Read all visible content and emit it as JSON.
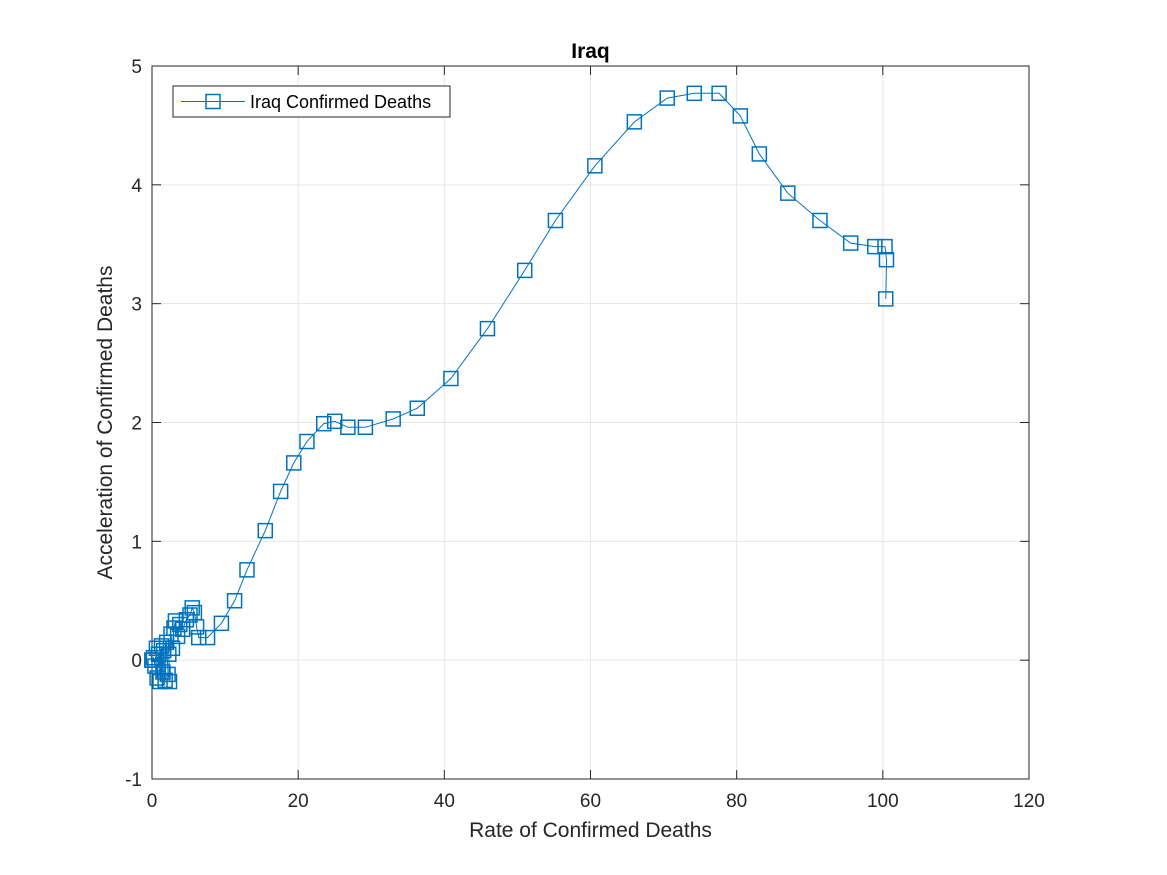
{
  "chart_data": {
    "type": "line",
    "title": "Iraq",
    "xlabel": "Rate of Confirmed Deaths",
    "ylabel": "Acceleration of Confirmed Deaths",
    "xlim": [
      0,
      120
    ],
    "ylim": [
      -1,
      5
    ],
    "xticks": [
      "0",
      "20",
      "40",
      "60",
      "80",
      "100",
      "120"
    ],
    "yticks": [
      "-1",
      "0",
      "1",
      "2",
      "3",
      "4",
      "5"
    ],
    "grid": true,
    "legend": {
      "position": "top-left",
      "entries": [
        "Iraq Confirmed Deaths"
      ]
    },
    "marker": "square",
    "series": [
      {
        "name": "Iraq Confirmed Deaths",
        "color": "#0072BD",
        "points": [
          [
            0,
            0
          ],
          [
            0,
            0
          ],
          [
            0,
            0
          ],
          [
            0.2,
            0.02
          ],
          [
            0.4,
            -0.05
          ],
          [
            0.6,
            0.1
          ],
          [
            0.7,
            -0.15
          ],
          [
            0.9,
            0.05
          ],
          [
            1.1,
            -0.18
          ],
          [
            1.3,
            0.12
          ],
          [
            1.5,
            -0.1
          ],
          [
            1.6,
            0.08
          ],
          [
            1.8,
            -0.17
          ],
          [
            2.0,
            0.15
          ],
          [
            2.2,
            -0.12
          ],
          [
            2.4,
            -0.18
          ],
          [
            2.3,
            0.05
          ],
          [
            2.6,
            0.22
          ],
          [
            2.8,
            0.1
          ],
          [
            3.0,
            0.27
          ],
          [
            3.2,
            0.33
          ],
          [
            3.5,
            0.2
          ],
          [
            3.8,
            0.3
          ],
          [
            4.2,
            0.26
          ],
          [
            4.7,
            0.34
          ],
          [
            5.2,
            0.38
          ],
          [
            5.5,
            0.44
          ],
          [
            5.8,
            0.4
          ],
          [
            6.1,
            0.28
          ],
          [
            6.4,
            0.19
          ],
          [
            7.6,
            0.19
          ],
          [
            9.5,
            0.31
          ],
          [
            11.3,
            0.5
          ],
          [
            13.0,
            0.76
          ],
          [
            15.5,
            1.09
          ],
          [
            17.6,
            1.42
          ],
          [
            19.4,
            1.66
          ],
          [
            21.2,
            1.84
          ],
          [
            23.5,
            1.99
          ],
          [
            25.0,
            2.01
          ],
          [
            26.8,
            1.96
          ],
          [
            29.2,
            1.96
          ],
          [
            33.0,
            2.03
          ],
          [
            36.3,
            2.12
          ],
          [
            40.9,
            2.37
          ],
          [
            45.9,
            2.79
          ],
          [
            51.0,
            3.28
          ],
          [
            55.2,
            3.7
          ],
          [
            60.6,
            4.16
          ],
          [
            66.0,
            4.53
          ],
          [
            70.5,
            4.73
          ],
          [
            74.2,
            4.77
          ],
          [
            77.6,
            4.77
          ],
          [
            80.5,
            4.58
          ],
          [
            83.1,
            4.26
          ],
          [
            87.0,
            3.93
          ],
          [
            91.4,
            3.7
          ],
          [
            95.6,
            3.51
          ],
          [
            98.9,
            3.48
          ],
          [
            100.3,
            3.48
          ],
          [
            100.5,
            3.37
          ],
          [
            100.4,
            3.04
          ]
        ]
      }
    ]
  }
}
